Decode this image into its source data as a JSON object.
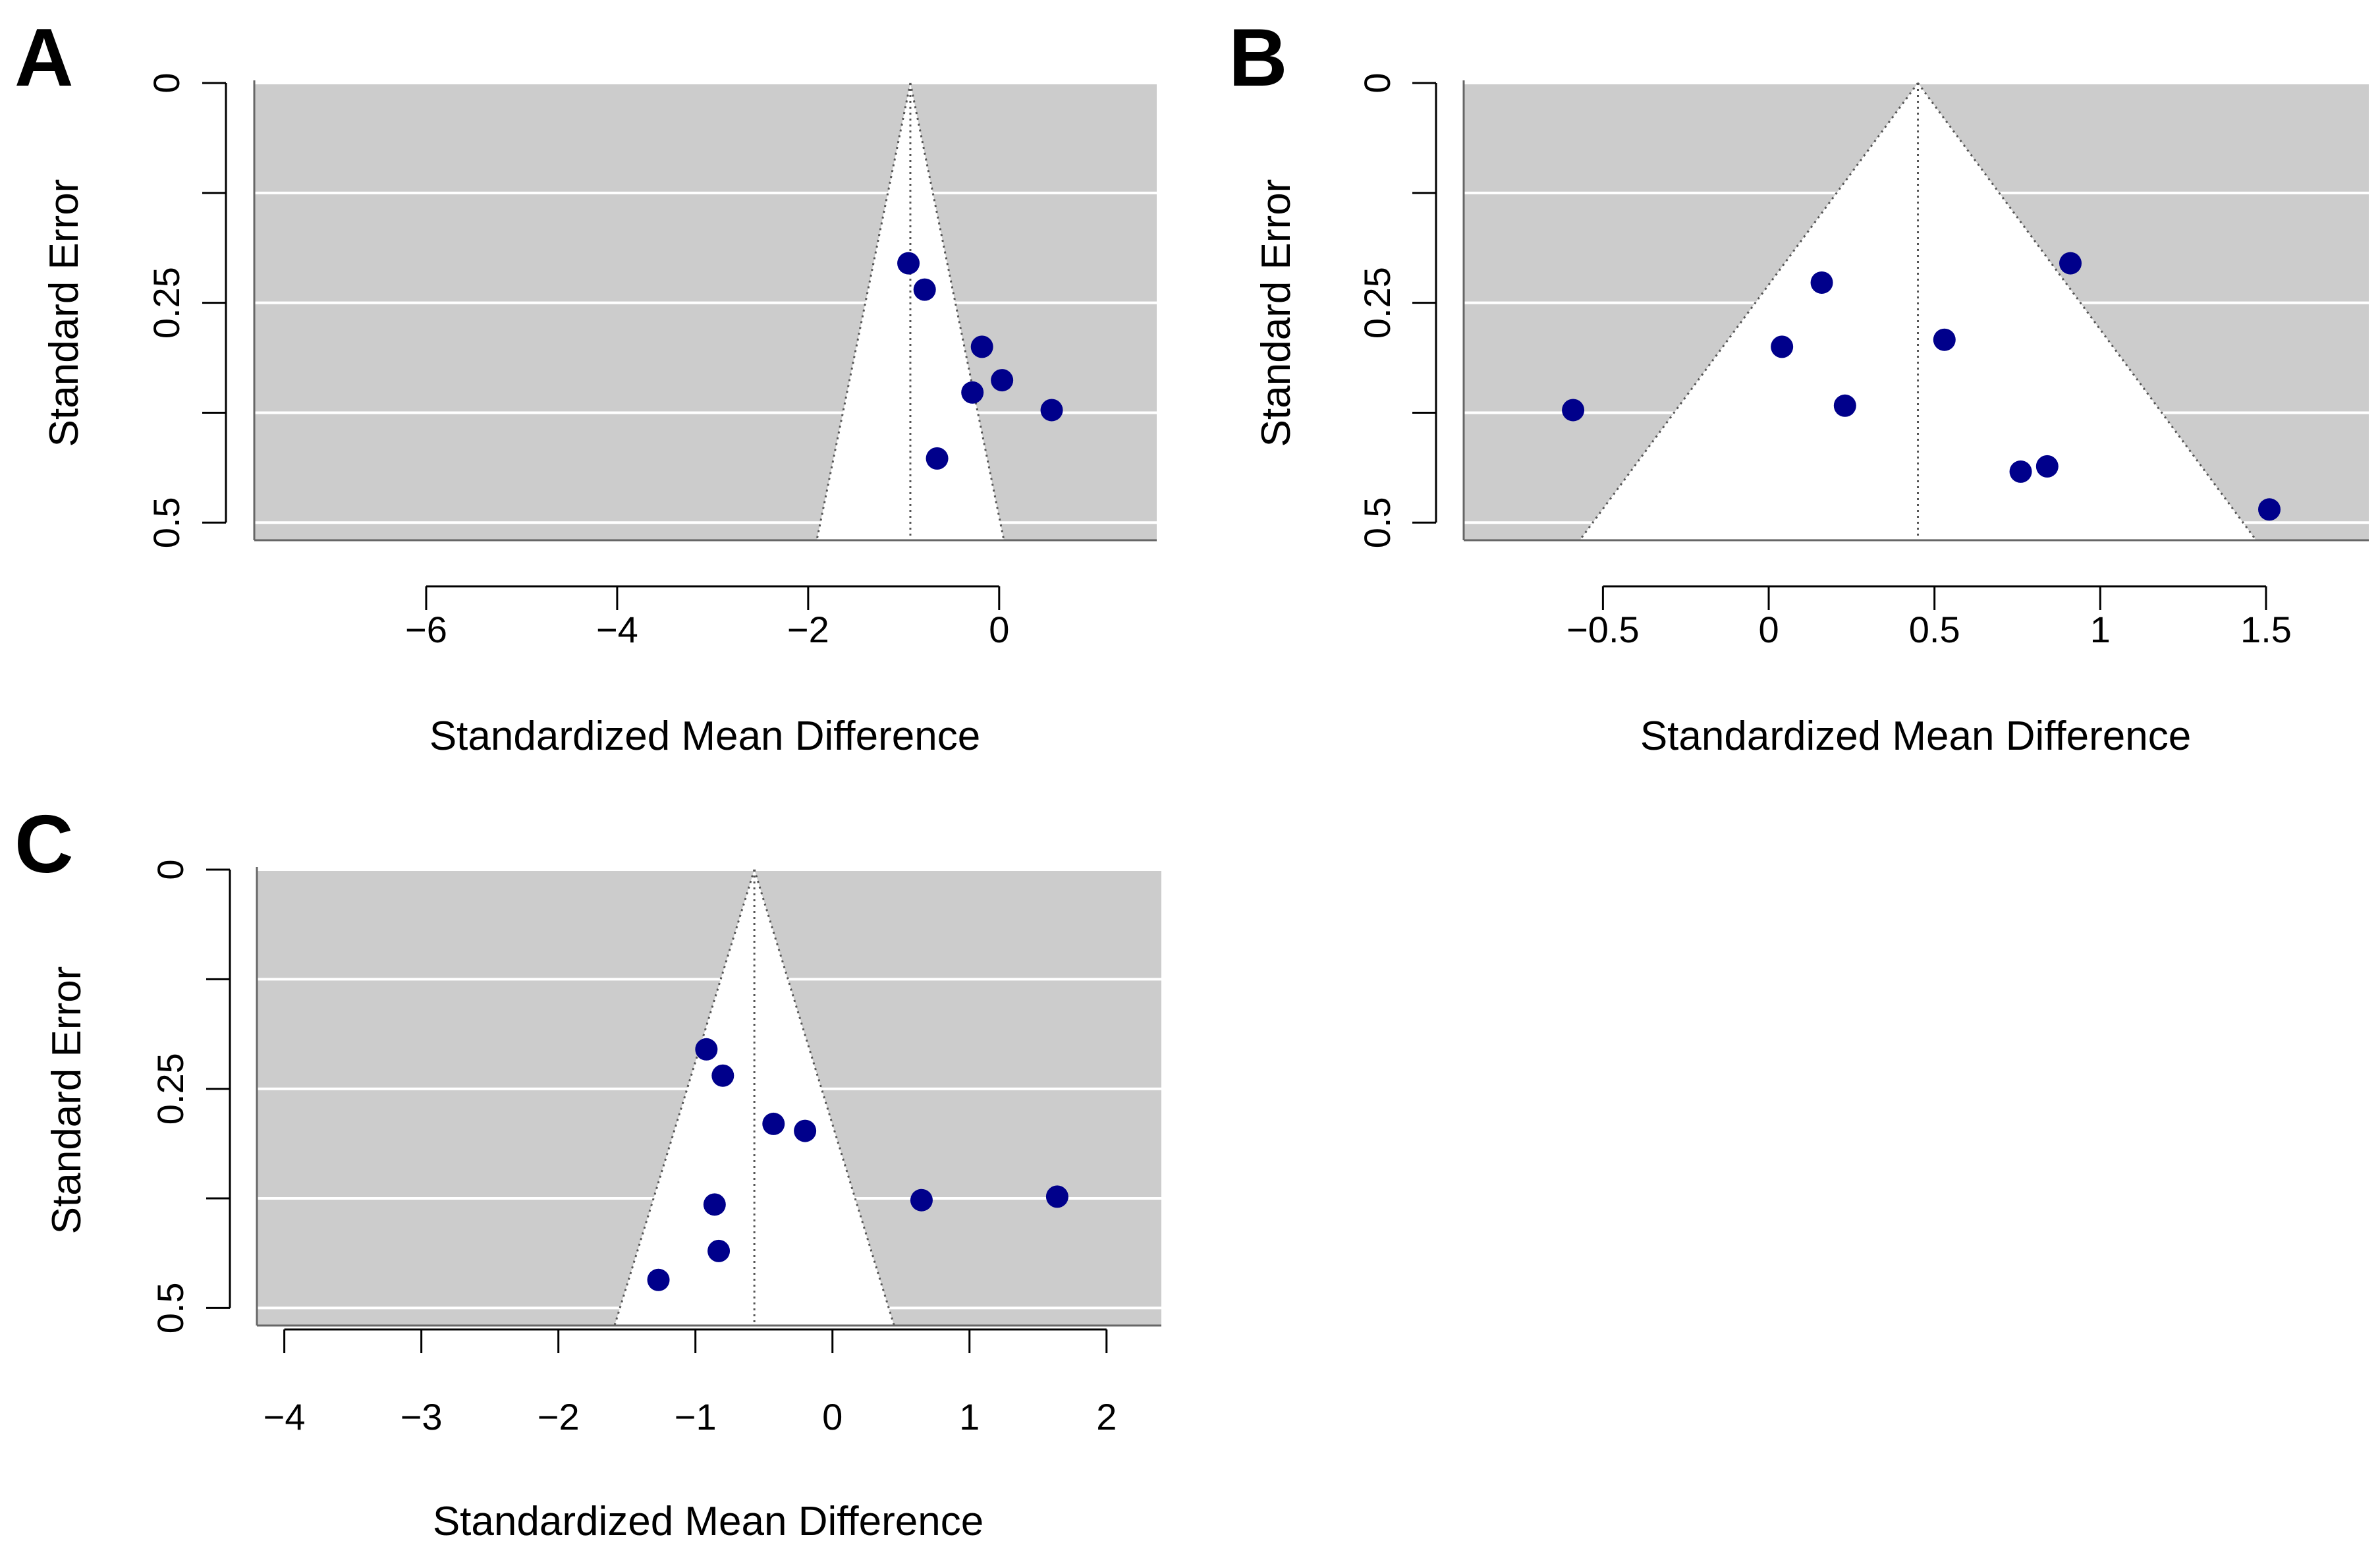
{
  "chart_data": [
    {
      "type": "scatter",
      "subtype": "funnel",
      "panel_label": "A",
      "xlabel": "Standardized Mean Difference",
      "ylabel": "Standard Error",
      "x_ticks": [
        -6,
        -4,
        -2,
        0
      ],
      "x_tick_labels": [
        "−6",
        "−4",
        "−2",
        "0"
      ],
      "y_ticks": [
        0,
        0.125,
        0.25,
        0.375,
        0.5
      ],
      "y_tick_labels": [
        "0",
        "",
        "0.25",
        "",
        "0.5"
      ],
      "xlim": [
        -7.8,
        1.65
      ],
      "ylim": [
        0,
        0.52
      ],
      "summary_estimate": -0.93,
      "funnel_half_width_at_max_se": 0.98,
      "points": [
        {
          "x": -0.95,
          "y": 0.205
        },
        {
          "x": -0.78,
          "y": 0.235
        },
        {
          "x": -0.18,
          "y": 0.3
        },
        {
          "x": 0.03,
          "y": 0.338
        },
        {
          "x": -0.28,
          "y": 0.352
        },
        {
          "x": 0.55,
          "y": 0.372
        },
        {
          "x": -0.65,
          "y": 0.427
        }
      ],
      "colors": {
        "background": "#cccccc",
        "funnel": "#ffffff",
        "point": "#00008b"
      }
    },
    {
      "type": "scatter",
      "subtype": "funnel",
      "panel_label": "B",
      "xlabel": "Standardized Mean Difference",
      "ylabel": "Standard Error",
      "x_ticks": [
        -0.5,
        0,
        0.5,
        1,
        1.5
      ],
      "x_tick_labels": [
        "−0.5",
        "0",
        "0.5",
        "1",
        "1.5"
      ],
      "y_ticks": [
        0,
        0.125,
        0.25,
        0.375,
        0.5
      ],
      "y_tick_labels": [
        "0",
        "",
        "0.25",
        "",
        "0.5"
      ],
      "xlim": [
        -0.92,
        1.81
      ],
      "ylim": [
        0,
        0.52
      ],
      "summary_estimate": 0.45,
      "funnel_half_width_at_max_se": 1.02,
      "points": [
        {
          "x": 0.91,
          "y": 0.205
        },
        {
          "x": 0.16,
          "y": 0.227
        },
        {
          "x": 0.04,
          "y": 0.3
        },
        {
          "x": 0.53,
          "y": 0.292
        },
        {
          "x": 0.23,
          "y": 0.367
        },
        {
          "x": -0.59,
          "y": 0.372
        },
        {
          "x": 0.84,
          "y": 0.436
        },
        {
          "x": 0.76,
          "y": 0.442
        },
        {
          "x": 1.51,
          "y": 0.485
        }
      ],
      "colors": {
        "background": "#cccccc",
        "funnel": "#ffffff",
        "point": "#00008b"
      }
    },
    {
      "type": "scatter",
      "subtype": "funnel",
      "panel_label": "C",
      "xlabel": "Standardized Mean Difference",
      "ylabel": "Standard Error",
      "x_ticks": [
        -4,
        -3,
        -2,
        -1,
        0,
        1,
        2
      ],
      "x_tick_labels": [
        "−4",
        "−3",
        "−2",
        "−1",
        "0",
        "1",
        "2"
      ],
      "y_ticks": [
        0,
        0.125,
        0.25,
        0.375,
        0.5
      ],
      "y_tick_labels": [
        "0",
        "",
        "0.25",
        "",
        "0.5"
      ],
      "xlim": [
        -4.2,
        2.4
      ],
      "ylim": [
        0,
        0.52
      ],
      "summary_estimate": -0.57,
      "funnel_half_width_at_max_se": 1.02,
      "points": [
        {
          "x": -0.92,
          "y": 0.205
        },
        {
          "x": -0.8,
          "y": 0.235
        },
        {
          "x": -0.43,
          "y": 0.29
        },
        {
          "x": -0.2,
          "y": 0.298
        },
        {
          "x": -0.86,
          "y": 0.382
        },
        {
          "x": 0.65,
          "y": 0.377
        },
        {
          "x": 1.64,
          "y": 0.373
        },
        {
          "x": -0.83,
          "y": 0.435
        },
        {
          "x": -1.27,
          "y": 0.468
        }
      ],
      "colors": {
        "background": "#cccccc",
        "funnel": "#ffffff",
        "point": "#00008b"
      }
    }
  ]
}
